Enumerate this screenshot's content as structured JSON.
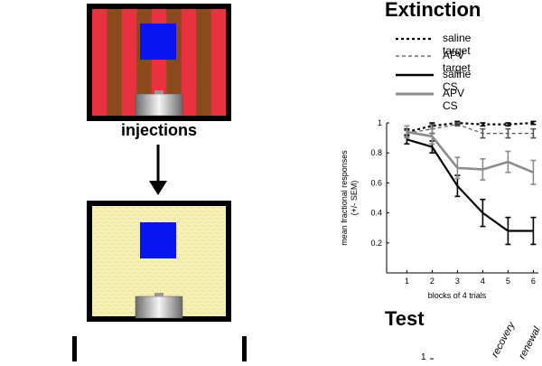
{
  "figure": {
    "arrow_label": "injections",
    "extinction_title": "Extinction",
    "test_title": "Test",
    "test_labels": [
      "recovery",
      "renewal"
    ],
    "test_tick_top": "1",
    "colors": {
      "stripe_red": "#e8323f",
      "stripe_brown": "#8a4a1c",
      "blue_square": "#0a14f0",
      "speckle_bg": "#f6f0b2",
      "gray_series": "#8c8c8c"
    }
  },
  "chart_data": {
    "type": "line",
    "title": "Extinction",
    "xlabel": "blocks of 4 trials",
    "ylabel_lines": [
      "mean fractional responses",
      "(+/- SEM)"
    ],
    "x": [
      1,
      2,
      3,
      4,
      5,
      6
    ],
    "xticks": [
      "1",
      "2",
      "3",
      "4",
      "5",
      "6"
    ],
    "yticks": [
      "0.2",
      "0.4",
      "0.6",
      "0.8",
      "1"
    ],
    "ylim": [
      0,
      1
    ],
    "xlim": [
      0.2,
      6.2
    ],
    "legend_position": "top",
    "series": [
      {
        "name": "saline target",
        "values": [
          0.94,
          0.98,
          1.0,
          0.99,
          0.99,
          1.0
        ],
        "sem": [
          0.02,
          0.02,
          0.01,
          0.01,
          0.01,
          0.01
        ],
        "style": "dotted",
        "color": "#000000"
      },
      {
        "name": "APV target",
        "values": [
          0.93,
          0.96,
          0.99,
          0.93,
          0.93,
          0.93
        ],
        "sem": [
          0.02,
          0.03,
          0.01,
          0.03,
          0.03,
          0.03
        ],
        "style": "dashed",
        "color": "#555555"
      },
      {
        "name": "saline CS",
        "values": [
          0.89,
          0.84,
          0.58,
          0.4,
          0.28,
          0.28
        ],
        "sem": [
          0.03,
          0.04,
          0.07,
          0.09,
          0.09,
          0.09
        ],
        "style": "solid",
        "color": "#000000"
      },
      {
        "name": "APV CS",
        "values": [
          0.94,
          0.91,
          0.7,
          0.69,
          0.74,
          0.67
        ],
        "sem": [
          0.04,
          0.05,
          0.07,
          0.07,
          0.07,
          0.08
        ],
        "style": "solid",
        "color": "#8c8c8c"
      }
    ]
  }
}
